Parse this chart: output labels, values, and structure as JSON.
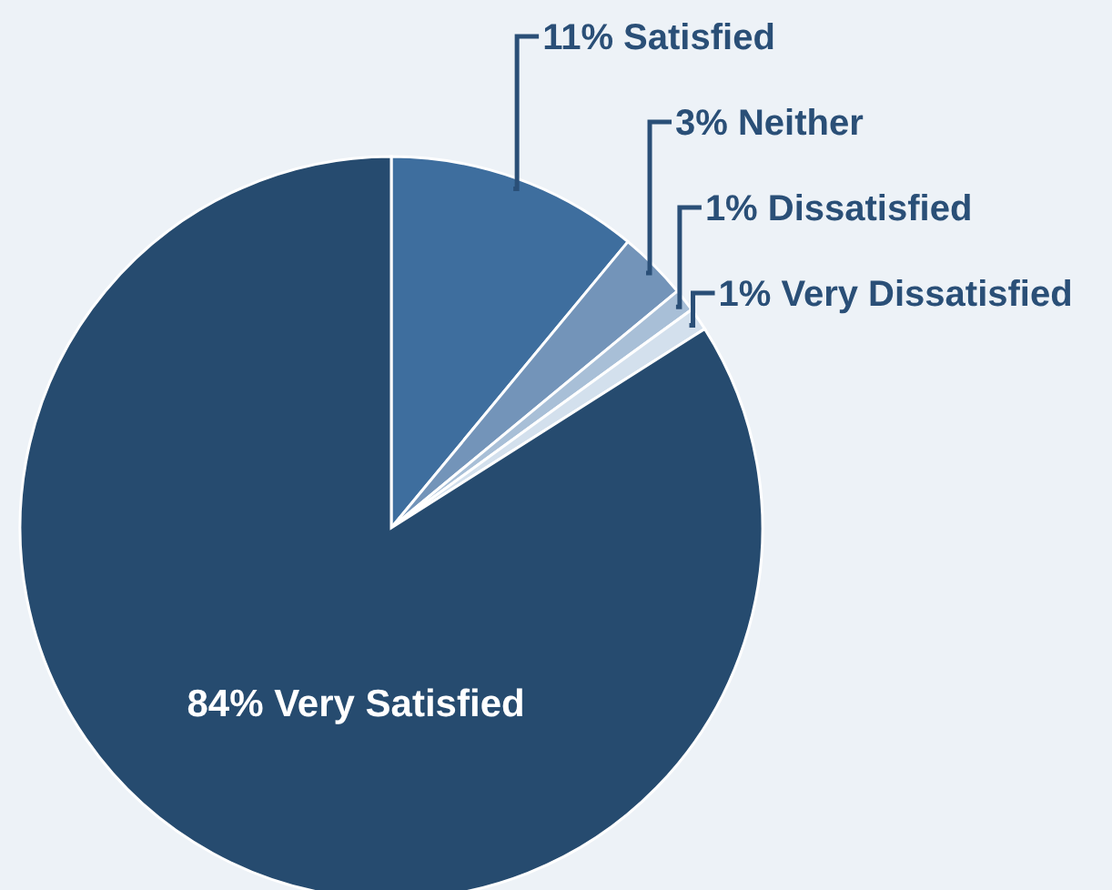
{
  "chart_data": {
    "type": "pie",
    "categories": [
      "11% Satisfied",
      "3% Neither",
      "1% Dissatisfied",
      "1% Very Dissatisfied",
      "84% Very Satisfied"
    ],
    "values": [
      11,
      3,
      1,
      1,
      84
    ],
    "colors": [
      "#3e6e9e",
      "#7394b9",
      "#a8bfd7",
      "#d3e0ed",
      "#264b6f"
    ]
  }
}
